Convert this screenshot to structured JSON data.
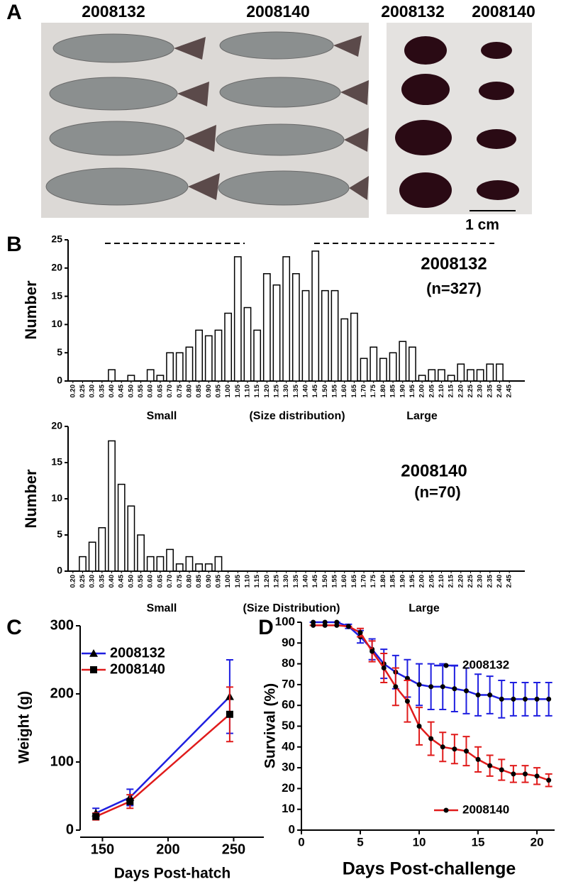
{
  "figure": {
    "panel_labels": [
      "A",
      "B",
      "C",
      "D"
    ],
    "photo_labels": [
      "2008132",
      "2008140",
      "2008132",
      "2008140"
    ],
    "scale_bar": "1 cm"
  },
  "chart_data": [
    {
      "type": "bar",
      "ylabel": "Number",
      "categories": [
        "0.20",
        "0.25",
        "0.30",
        "0.35",
        "0.40",
        "0.45",
        "0.50",
        "0.55",
        "0.60",
        "0.65",
        "0.70",
        "0.75",
        "0.80",
        "0.85",
        "0.90",
        "0.95",
        "1.00",
        "1.05",
        "1.10",
        "1.15",
        "1.20",
        "1.25",
        "1.30",
        "1.35",
        "1.40",
        "1.45",
        "1.50",
        "1.55",
        "1.60",
        "1.65",
        "1.70",
        "1.75",
        "1.80",
        "1.85",
        "1.90",
        "1.95",
        "2.00",
        "2.05",
        "2.10",
        "2.15",
        "2.20",
        "2.25",
        "2.30",
        "2.35",
        "2.40",
        "2.45"
      ],
      "series": [
        {
          "name": "2008132",
          "color": "#ffffff",
          "label_color": "#1f1fd6",
          "values": [
            0,
            0,
            0,
            0,
            2,
            0,
            1,
            0,
            2,
            1,
            5,
            5,
            6,
            9,
            8,
            9,
            12,
            22,
            13,
            9,
            19,
            17,
            22,
            19,
            16,
            23,
            16,
            16,
            11,
            12,
            4,
            6,
            4,
            5,
            7,
            6,
            1,
            2,
            2,
            1,
            3,
            2,
            2,
            3,
            3,
            0
          ]
        }
      ],
      "note": "(n=327)",
      "annotations": [
        "Small",
        "(Size distribution)",
        "Large"
      ],
      "ylim": [
        0,
        25
      ],
      "yticks": [
        0,
        5,
        10,
        15,
        20,
        25
      ]
    },
    {
      "type": "bar",
      "ylabel": "Number",
      "categories": [
        "0.20",
        "0.25",
        "0.30",
        "0.35",
        "0.40",
        "0.45",
        "0.50",
        "0.55",
        "0.60",
        "0.65",
        "0.70",
        "0.75",
        "0.80",
        "0.85",
        "0.90",
        "0.95",
        "1.00",
        "1.05",
        "1.10",
        "1.15",
        "1.20",
        "1.25",
        "1.30",
        "1.35",
        "1.40",
        "1.45",
        "1.50",
        "1.55",
        "1.60",
        "1.65",
        "1.70",
        "1.75",
        "1.80",
        "1.85",
        "1.90",
        "1.95",
        "2.00",
        "2.05",
        "2.10",
        "2.15",
        "2.20",
        "2.25",
        "2.30",
        "2.35",
        "2.40",
        "2.45"
      ],
      "series": [
        {
          "name": "2008140",
          "color": "#ffffff",
          "label_color": "#e01b1b",
          "values": [
            0,
            2,
            4,
            6,
            18,
            12,
            9,
            5,
            2,
            2,
            3,
            1,
            2,
            1,
            1,
            2,
            0,
            0,
            0,
            0,
            0,
            0,
            0,
            0,
            0,
            0,
            0,
            0,
            0,
            0,
            0,
            0,
            0,
            0,
            0,
            0,
            0,
            0,
            0,
            0,
            0,
            0,
            0,
            0,
            0,
            0
          ]
        }
      ],
      "note": "(n=70)",
      "annotations": [
        "Small",
        "(Size Distribution)",
        "Large"
      ],
      "ylim": [
        0,
        20
      ],
      "yticks": [
        0,
        5,
        10,
        15,
        20
      ]
    },
    {
      "type": "line",
      "xlabel": "Days Post-hatch",
      "ylabel": "Weight (g)",
      "x": [
        145,
        171,
        247
      ],
      "series": [
        {
          "name": "2008132",
          "color": "#1f1fe0",
          "marker": "triangle",
          "values": [
            25,
            48,
            196
          ],
          "errors": [
            7,
            12,
            54
          ]
        },
        {
          "name": "2008140",
          "color": "#e01b1b",
          "marker": "square",
          "values": [
            20,
            42,
            170
          ],
          "errors": [
            5,
            10,
            40
          ]
        }
      ],
      "xlim": [
        133,
        273
      ],
      "xticks": [
        150,
        200,
        250
      ],
      "ylim": [
        0,
        300
      ],
      "yticks": [
        0,
        100,
        200,
        300
      ]
    },
    {
      "type": "line",
      "xlabel": "Days  Post-challenge",
      "ylabel": "Survival (%)",
      "x": [
        1,
        2,
        3,
        4,
        5,
        6,
        7,
        8,
        9,
        10,
        11,
        12,
        13,
        14,
        15,
        16,
        17,
        18,
        19,
        20,
        21
      ],
      "series": [
        {
          "name": "2008132",
          "color": "#1f1fe0",
          "marker": "circle",
          "values": [
            100,
            100,
            100,
            98,
            93,
            87,
            80,
            76,
            73,
            70,
            69,
            69,
            68,
            67,
            65,
            65,
            63,
            63,
            63,
            63,
            63
          ],
          "errors": [
            0,
            0,
            0,
            1,
            3,
            5,
            7,
            8,
            9,
            10,
            11,
            11,
            11,
            11,
            10,
            9,
            9,
            8,
            8,
            8,
            8
          ]
        },
        {
          "name": "2008140",
          "color": "#e01b1b",
          "marker": "circle",
          "values": [
            98.5,
            98.5,
            98.5,
            98,
            95,
            86,
            78,
            69,
            62,
            50,
            44,
            40,
            39,
            38,
            34,
            31,
            29,
            27,
            27,
            26,
            24
          ],
          "errors": [
            0,
            0,
            0,
            0,
            2,
            5,
            7,
            9,
            10,
            9,
            8,
            7,
            7,
            7,
            6,
            5,
            5,
            4,
            4,
            4,
            3
          ]
        }
      ],
      "xlim": [
        0,
        21.5
      ],
      "xticks": [
        0,
        5,
        10,
        15,
        20
      ],
      "ylim": [
        0,
        100
      ],
      "yticks": [
        0,
        10,
        20,
        30,
        40,
        50,
        60,
        70,
        80,
        90,
        100
      ]
    }
  ]
}
